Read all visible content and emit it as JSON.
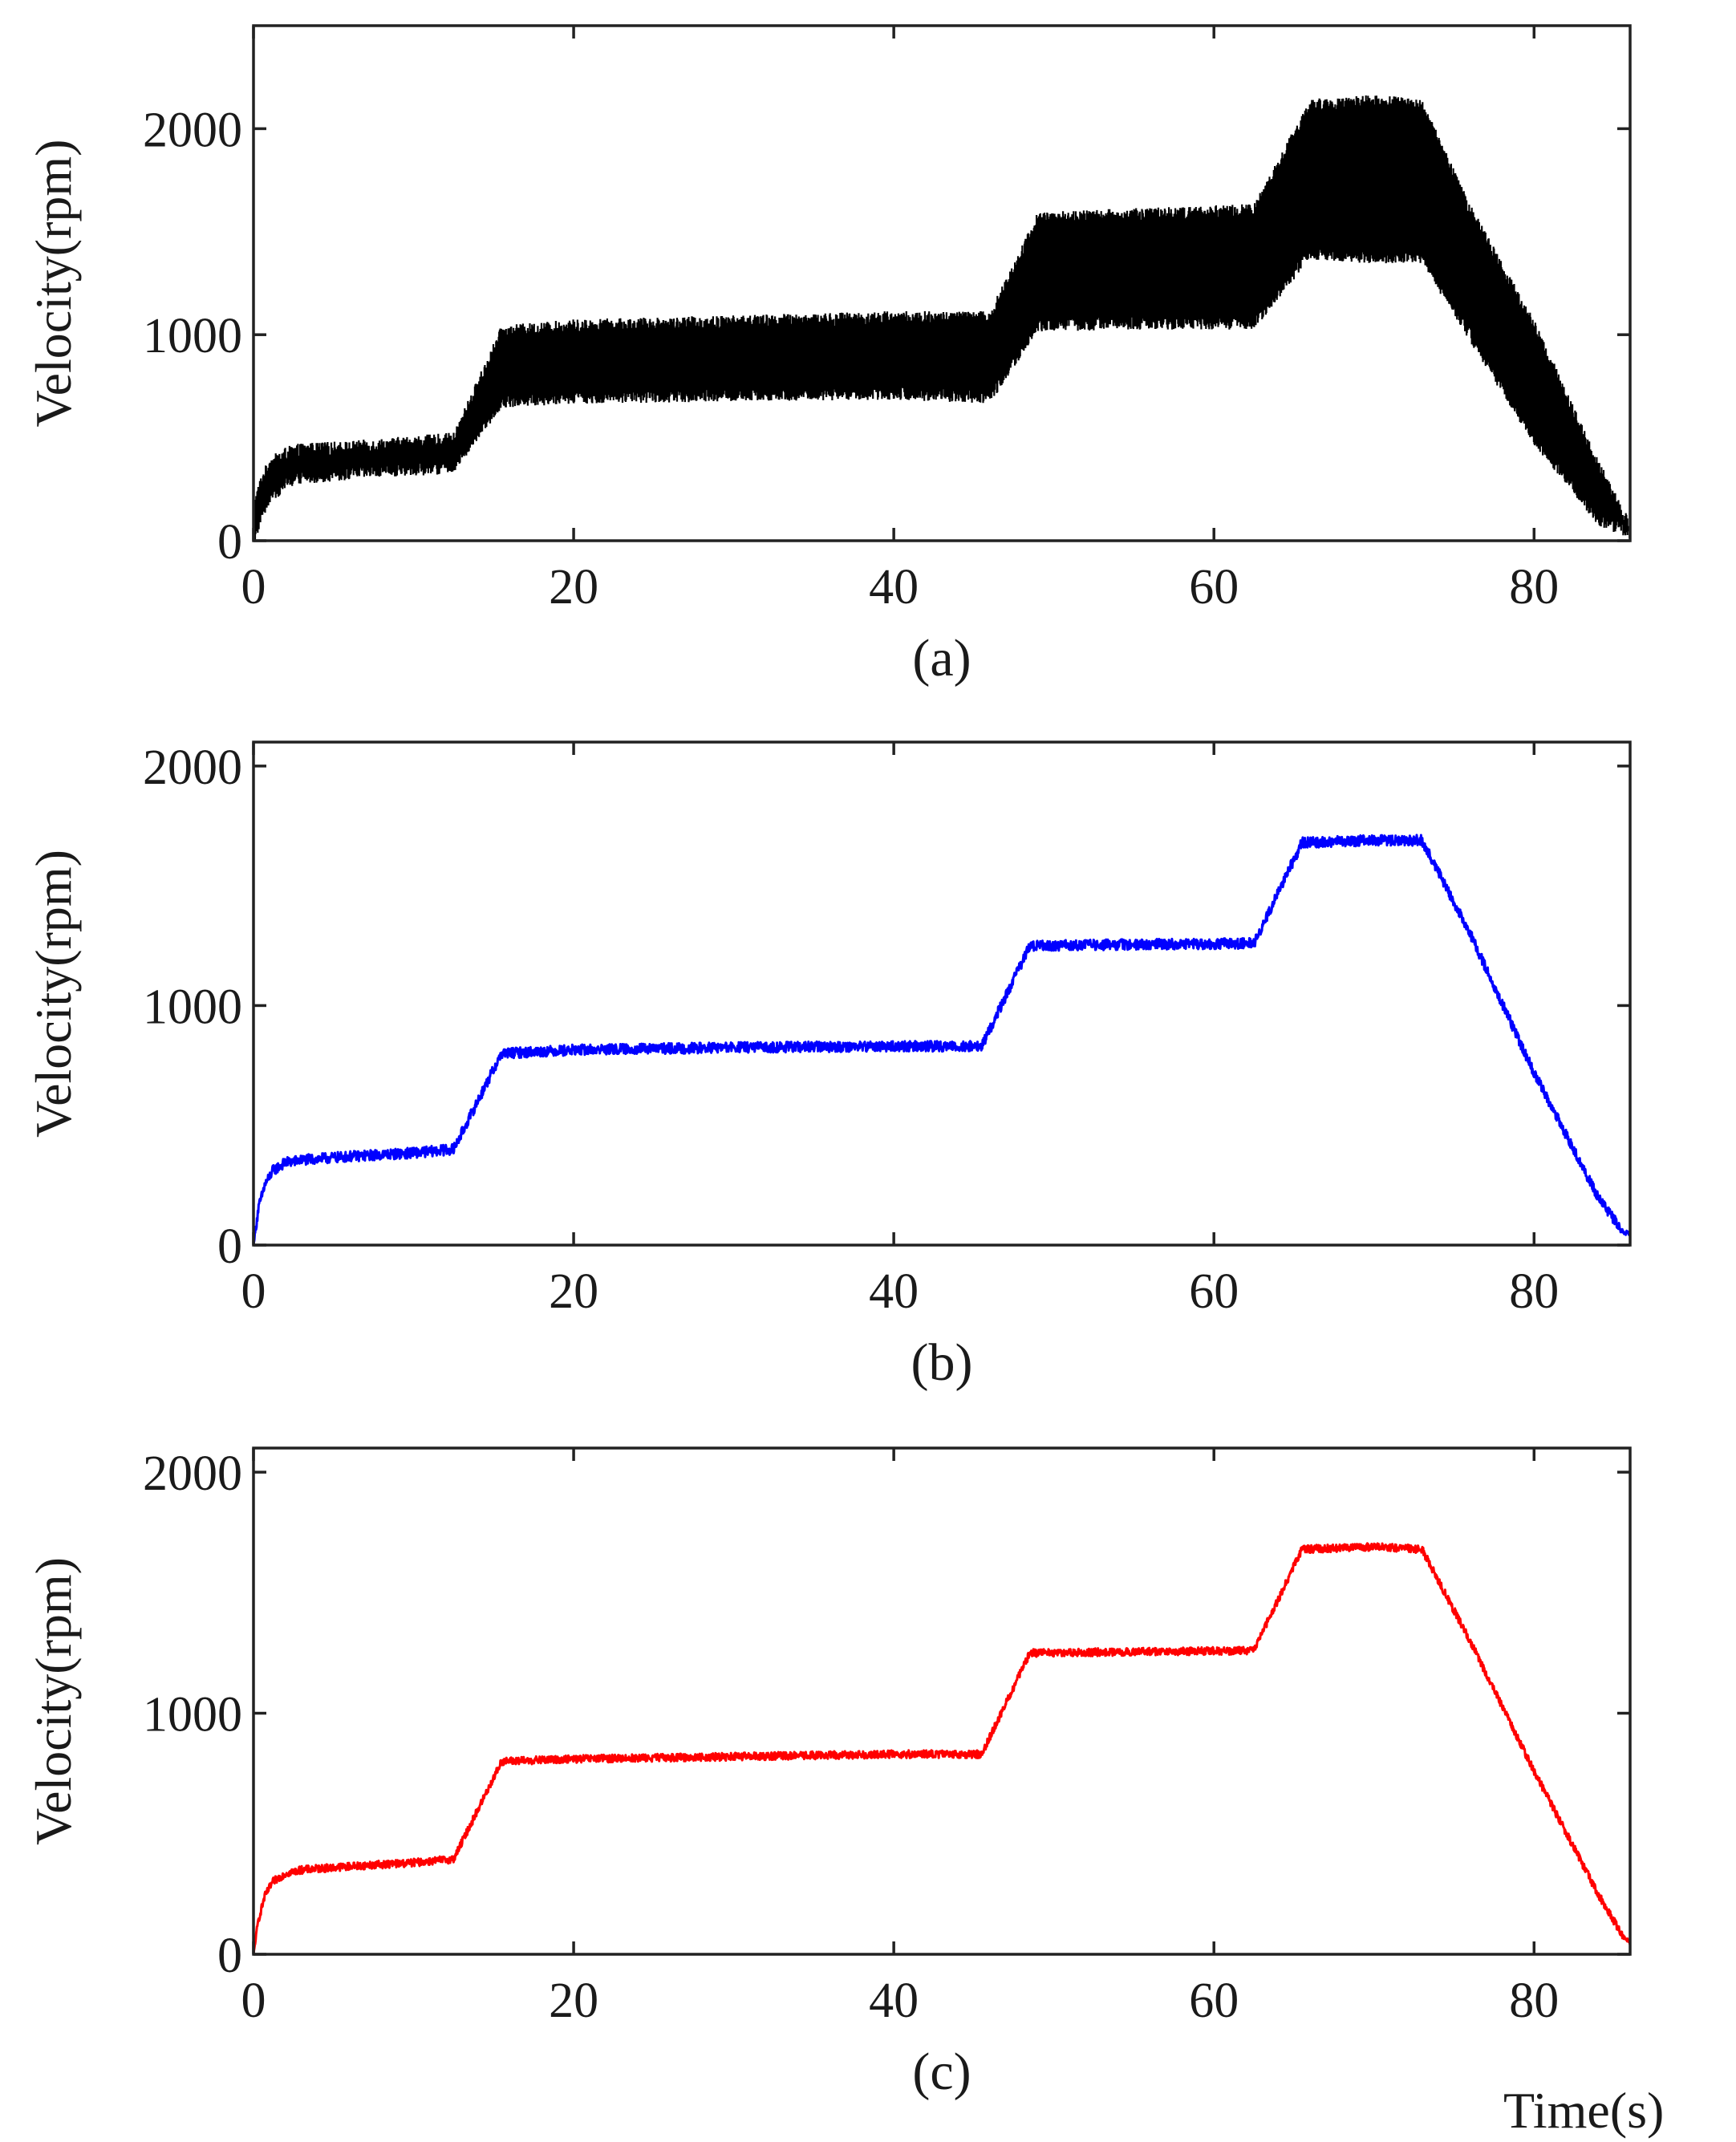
{
  "figure": {
    "xlabel": "Time(s)"
  },
  "chart_data": [
    {
      "type": "line",
      "panel_label": "(a)",
      "ylabel": "Velocity(rpm)",
      "xlim": [
        0,
        86
      ],
      "ylim": [
        0,
        2500
      ],
      "xticks": [
        0,
        20,
        40,
        60,
        80
      ],
      "yticks": [
        0,
        1000,
        2000
      ],
      "color": "#000000",
      "band": true,
      "series": [
        {
          "x": [
            0,
            0.5,
            1,
            2,
            3,
            6,
            10,
            12.5,
            15.5,
            20,
            30,
            40,
            46,
            49,
            55,
            62.5,
            66,
            70,
            73,
            76,
            80,
            84,
            86
          ],
          "upper": [
            160,
            290,
            370,
            420,
            440,
            450,
            475,
            490,
            1010,
            1040,
            1060,
            1080,
            1080,
            1560,
            1580,
            1600,
            2110,
            2130,
            2110,
            1600,
            1040,
            360,
            60
          ],
          "lower": [
            0,
            130,
            210,
            280,
            310,
            330,
            350,
            360,
            680,
            700,
            710,
            720,
            700,
            1050,
            1060,
            1060,
            1400,
            1380,
            1380,
            1000,
            500,
            110,
            40
          ]
        }
      ]
    },
    {
      "type": "line",
      "panel_label": "(b)",
      "ylabel": "Velocity(rpm)",
      "xlim": [
        0,
        86
      ],
      "ylim": [
        0,
        2100
      ],
      "xticks": [
        0,
        20,
        40,
        60,
        80
      ],
      "yticks": [
        0,
        1000,
        2000
      ],
      "color": "#0000ff",
      "band": false,
      "noise": 22,
      "series": [
        {
          "x": [
            0,
            0.3,
            0.7,
            1.2,
            2,
            3,
            6,
            10,
            12.5,
            15.5,
            20,
            30,
            40,
            45.5,
            48.5,
            55,
            62.5,
            65.5,
            70,
            73,
            76,
            80,
            84,
            85.5,
            86
          ],
          "y": [
            0,
            150,
            250,
            310,
            345,
            355,
            370,
            385,
            400,
            800,
            815,
            825,
            830,
            830,
            1250,
            1255,
            1260,
            1680,
            1690,
            1690,
            1300,
            720,
            200,
            60,
            45
          ]
        }
      ]
    },
    {
      "type": "line",
      "panel_label": "(c)",
      "ylabel": "Velocity(rpm)",
      "xlim": [
        0,
        86
      ],
      "ylim": [
        0,
        2100
      ],
      "xticks": [
        0,
        20,
        40,
        60,
        80
      ],
      "yticks": [
        0,
        1000,
        2000
      ],
      "color": "#ff0000",
      "band": false,
      "noise": 16,
      "series": [
        {
          "x": [
            0,
            0.3,
            0.7,
            1.2,
            2,
            3,
            6,
            10,
            12.5,
            15.5,
            20,
            30,
            40,
            45.5,
            48.5,
            55,
            62.5,
            65.5,
            70,
            73,
            76,
            80,
            84,
            85.5,
            86
          ],
          "y": [
            0,
            140,
            240,
            300,
            335,
            350,
            365,
            380,
            395,
            800,
            810,
            820,
            830,
            830,
            1250,
            1255,
            1260,
            1680,
            1690,
            1680,
            1300,
            760,
            250,
            80,
            45
          ]
        }
      ]
    }
  ]
}
